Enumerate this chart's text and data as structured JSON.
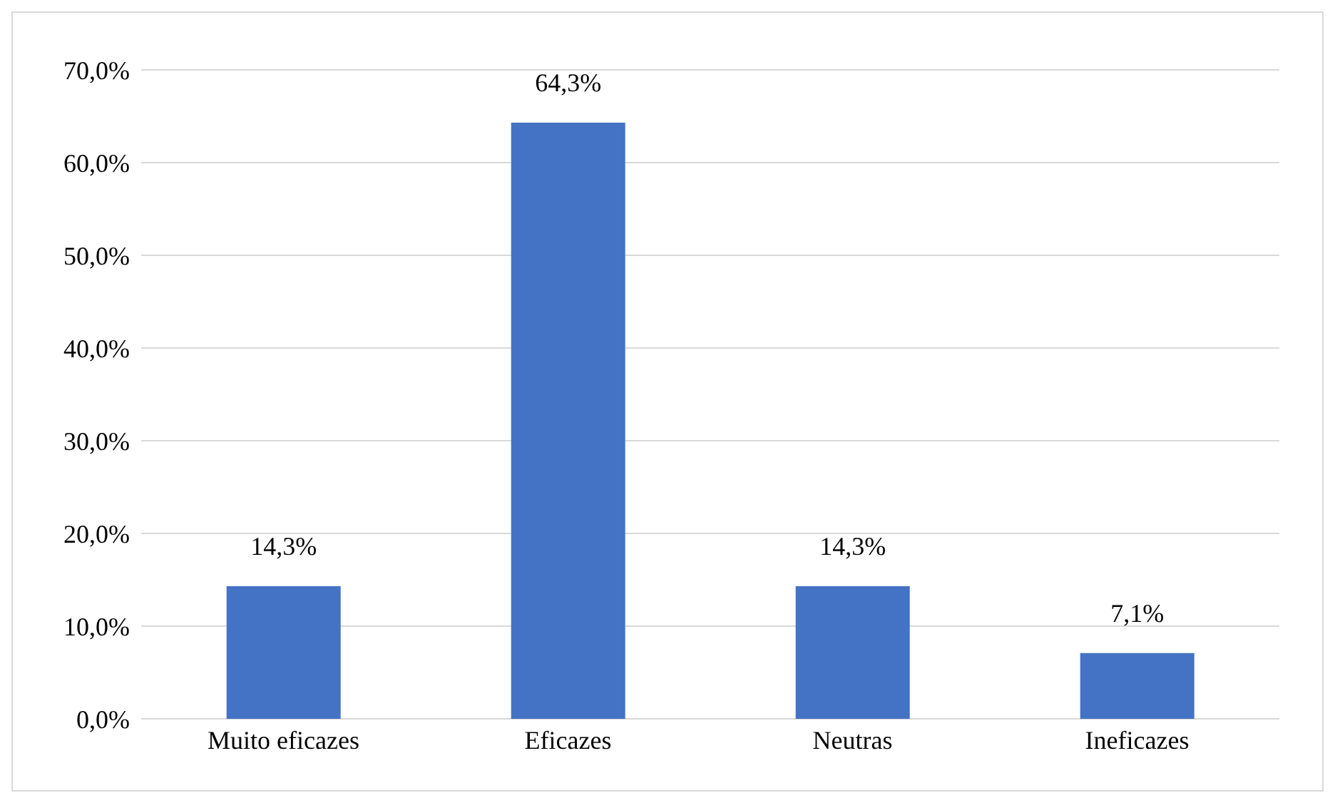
{
  "chart_data": {
    "type": "bar",
    "categories": [
      "Muito eficazes",
      "Eficazes",
      "Neutras",
      "Ineficazes"
    ],
    "values": [
      14.3,
      64.3,
      14.3,
      7.1
    ],
    "color": "#4472c4",
    "value_labels": [
      "14,3%",
      "64,3%",
      "14,3%",
      "7,1%"
    ],
    "ylim": [
      0,
      70
    ],
    "yticks": [
      {
        "value": 0,
        "label": "0,0%"
      },
      {
        "value": 10,
        "label": "10,0%"
      },
      {
        "value": 20,
        "label": "20,0%"
      },
      {
        "value": 30,
        "label": "30,0%"
      },
      {
        "value": 40,
        "label": "40,0%"
      },
      {
        "value": 50,
        "label": "50,0%"
      },
      {
        "value": 60,
        "label": "60,0%"
      },
      {
        "value": 70,
        "label": "70,0%"
      }
    ],
    "grid": "y"
  }
}
